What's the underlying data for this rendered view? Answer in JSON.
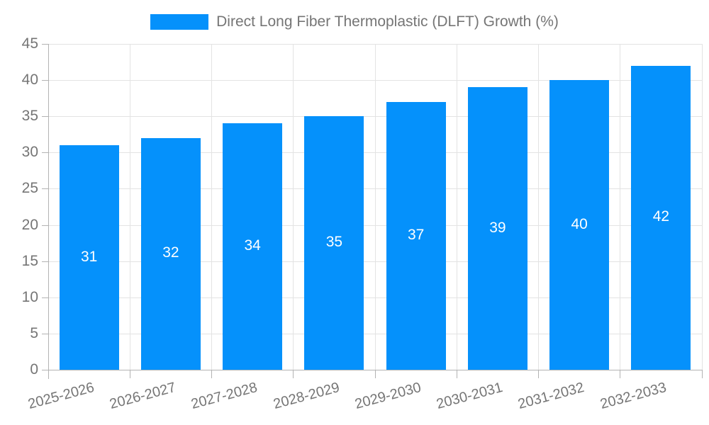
{
  "legend": {
    "label": "Direct Long Fiber Thermoplastic (DLFT) Growth (%)"
  },
  "chart_data": {
    "type": "bar",
    "title": "",
    "xlabel": "",
    "ylabel": "",
    "categories": [
      "2025-2026",
      "2026-2027",
      "2027-2028",
      "2028-2029",
      "2029-2030",
      "2030-2031",
      "2031-2032",
      "2032-2033"
    ],
    "series": [
      {
        "name": "Direct Long Fiber Thermoplastic (DLFT) Growth (%)",
        "values": [
          31,
          32,
          34,
          35,
          37,
          39,
          40,
          42
        ]
      }
    ],
    "data_labels": [
      "31",
      "32",
      "34",
      "35",
      "37",
      "39",
      "40",
      "42"
    ],
    "ylim": [
      0,
      45
    ],
    "ytick_step": 5,
    "ytick_labels": [
      "0",
      "5",
      "10",
      "15",
      "20",
      "25",
      "30",
      "35",
      "40",
      "45"
    ],
    "grid": true,
    "legend_position": "top",
    "x_label_rotation_deg": -15,
    "colors": {
      "bar": "#0591fb",
      "bar_value_label": "#ffffff",
      "axis_line": "#b3b3b3",
      "grid_line": "#e3e3e3",
      "tick_text": "#757575",
      "legend_text": "#757575"
    }
  }
}
